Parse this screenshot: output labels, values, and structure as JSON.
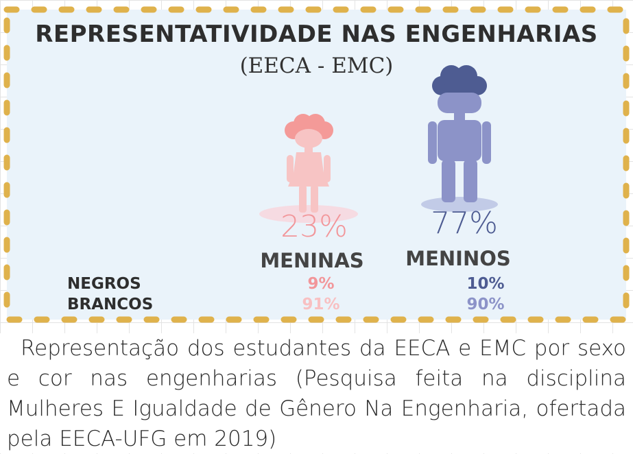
{
  "infographic": {
    "title": "REPRESENTATIVIDADE NAS ENGENHARIAS",
    "subtitle": "(EECA - EMC)",
    "girls": {
      "percent": "23%",
      "label": "MENINAS",
      "negros": "9%",
      "brancos": "91%"
    },
    "boys": {
      "percent": "77%",
      "label": "MENINOS",
      "negros": "10%",
      "brancos": "90%"
    },
    "rows": {
      "negros": "NEGROS",
      "brancos": "BRANCOS"
    },
    "colors": {
      "panel_bg": "#eaf3fa",
      "dash_border": "#dfb24c",
      "girl": "#f2969a",
      "girl_light": "#f8c0c2",
      "boy": "#4e5c92",
      "boy_light": "#8c93c8"
    },
    "icons": [
      "girl-figure-icon",
      "boy-figure-icon"
    ]
  },
  "caption": "Representação dos estudantes da EECA e EMC por sexo e cor nas engenharias (Pesquisa feita na disciplina Mulheres E Igualdade de Gênero Na Engenharia, ofertada pela EECA-UFG em 2019)"
}
